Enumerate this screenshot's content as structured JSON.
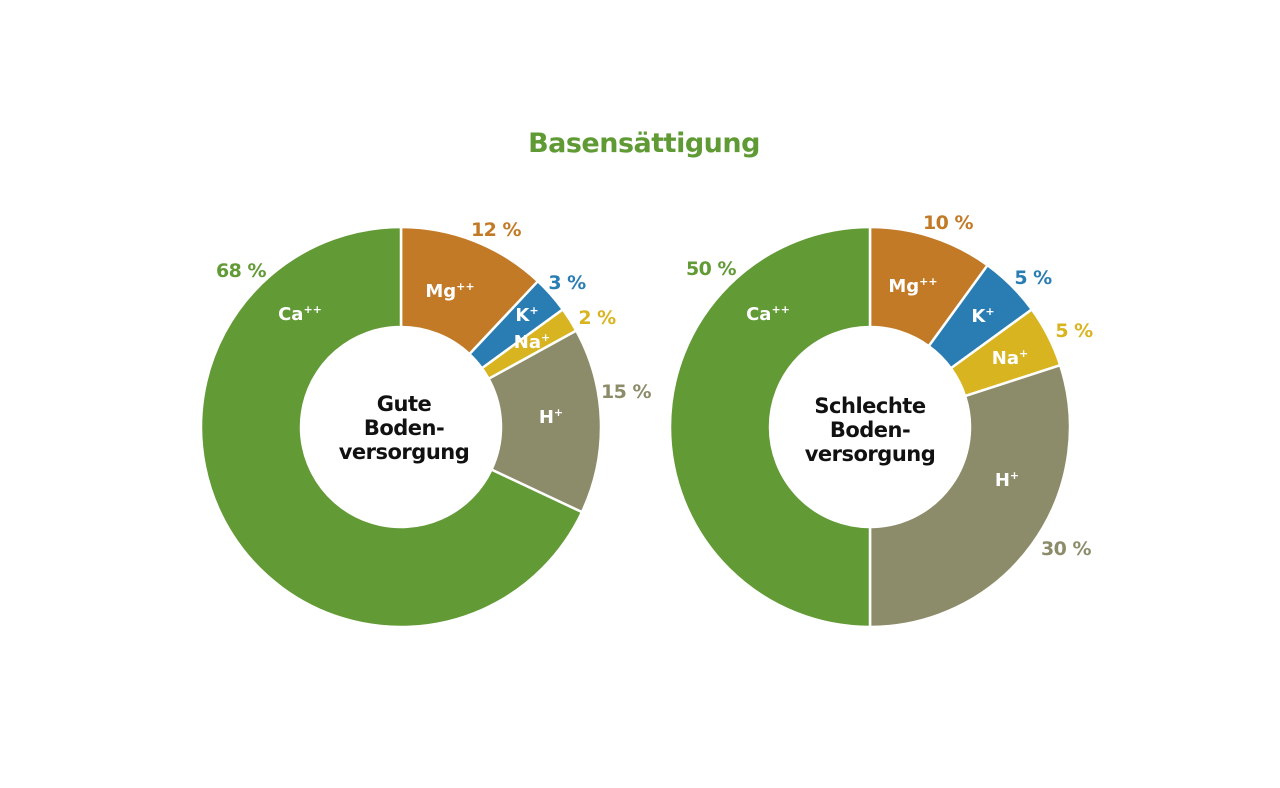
{
  "chart_data": [
    {
      "type": "pie",
      "variant": "donut",
      "title": "Basensättigung",
      "center_label": [
        "Gute",
        "Boden-",
        "versorgung"
      ],
      "categories": [
        "Mg++",
        "K+",
        "Na+",
        "H+",
        "Ca++"
      ],
      "values": [
        12,
        3,
        2,
        15,
        68
      ],
      "value_labels": [
        "12 %",
        "3 %",
        "2 %",
        "15 %",
        "68 %"
      ],
      "colors": [
        "#c27a27",
        "#2a7db3",
        "#d8b420",
        "#8d8c6a",
        "#629a36"
      ],
      "start_angle": "top, clockwise",
      "legend": "none (labels on slices)"
    },
    {
      "type": "pie",
      "variant": "donut",
      "title": "Basensättigung",
      "center_label": [
        "Schlechte",
        "Boden-",
        "versorgung"
      ],
      "categories": [
        "Mg++",
        "K+",
        "Na+",
        "H+",
        "Ca++"
      ],
      "values": [
        10,
        5,
        5,
        30,
        50
      ],
      "value_labels": [
        "10 %",
        "5 %",
        "5 %",
        "30 %",
        "50 %"
      ],
      "colors": [
        "#c27a27",
        "#2a7db3",
        "#d8b420",
        "#8d8c6a",
        "#629a36"
      ],
      "start_angle": "top, clockwise",
      "legend": "none (labels on slices)"
    }
  ],
  "title": "Basensättigung",
  "left": {
    "center": [
      "Gute",
      "Boden-",
      "versorgung"
    ],
    "ions": {
      "mg": "Mg",
      "k": "K",
      "na": "Na",
      "h": "H",
      "ca": "Ca"
    },
    "pct": {
      "mg": "12 %",
      "k": "3 %",
      "na": "2 %",
      "h": "15 %",
      "ca": "68 %"
    }
  },
  "right": {
    "center": [
      "Schlechte",
      "Boden-",
      "versorgung"
    ],
    "ions": {
      "mg": "Mg",
      "k": "K",
      "na": "Na",
      "h": "H",
      "ca": "Ca"
    },
    "pct": {
      "mg": "10 %",
      "k": "5 %",
      "na": "5 %",
      "h": "30 %",
      "ca": "50 %"
    }
  },
  "charges": {
    "double": "++",
    "single": "+"
  },
  "colors": {
    "title": "#5f9a34",
    "mg": "#c27a27",
    "k": "#2a7db3",
    "na": "#d8b420",
    "h": "#8d8c6a",
    "ca": "#629a36"
  }
}
